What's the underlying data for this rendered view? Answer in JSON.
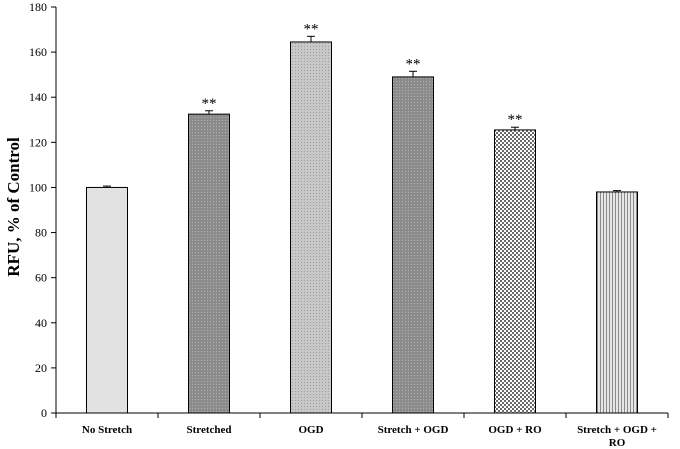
{
  "chart_data": {
    "type": "bar",
    "title": "",
    "xlabel": "",
    "ylabel": "RFU,  % of Control",
    "ylim": [
      0,
      180
    ],
    "yticks": [
      0,
      20,
      40,
      60,
      80,
      100,
      120,
      140,
      160,
      180
    ],
    "grid": false,
    "legend": "none",
    "categories": [
      "No Stretch",
      "Stretched",
      "OGD",
      "Stretch + OGD",
      "OGD + RO",
      "Stretch + OGD + RO"
    ],
    "category_lines": [
      [
        "No Stretch"
      ],
      [
        "Stretched"
      ],
      [
        "OGD"
      ],
      [
        "Stretch + OGD"
      ],
      [
        "OGD + RO"
      ],
      [
        "Stretch + OGD +",
        "RO"
      ]
    ],
    "values": [
      100,
      132.5,
      164.5,
      149,
      125.5,
      98
    ],
    "errors": [
      0.6,
      1.5,
      2.5,
      2.5,
      1.2,
      0.6
    ],
    "significance": [
      "",
      "**",
      "**",
      "**",
      "**",
      ""
    ],
    "fills": [
      "light-gray",
      "dark-dotted",
      "light-dotted",
      "dark-dotted",
      "checkered",
      "vertical-stripes"
    ]
  }
}
